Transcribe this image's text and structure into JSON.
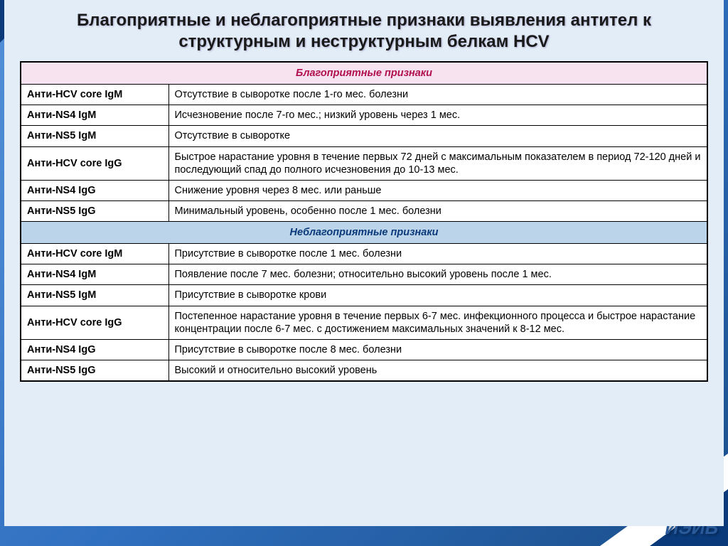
{
  "title": "Благоприятные и неблагоприятные признаки выявления антител к структурным и неструктурным белкам HCV",
  "brand": "ИЭИБ",
  "sections": {
    "favorable": {
      "header": "Благоприятные признаки",
      "rows": [
        {
          "marker": "Анти-HCV core IgM",
          "desc": "Отсутствие в сыворотке после 1-го мес. болезни"
        },
        {
          "marker": "Анти-NS4 IgM",
          "desc": "Исчезновение после 7-го мес.; низкий уровень через 1 мес."
        },
        {
          "marker": "Анти-NS5 IgM",
          "desc": "Отсутствие в сыворотке"
        },
        {
          "marker": "Анти-HCV core IgG",
          "desc": "Быстрое  нарастание уровня в течение первых 72 дней с максимальным показателем в период 72-120 дней и последующий спад до полного исчезновения до 10-13 мес."
        },
        {
          "marker": "Анти-NS4 IgG",
          "desc": "Снижение уровня через 8 мес. или раньше"
        },
        {
          "marker": "Анти-NS5 IgG",
          "desc": "Минимальный уровень, особенно после 1 мес. болезни"
        }
      ]
    },
    "unfavorable": {
      "header": "Неблагоприятные признаки",
      "rows": [
        {
          "marker": "Анти-HCV core IgM",
          "desc": "Присутствие в сыворотке после 1 мес. болезни"
        },
        {
          "marker": "Анти-NS4 IgM",
          "desc": "Появление после 7 мес. болезни; относительно высокий уровень после 1 мес."
        },
        {
          "marker": "Анти-NS5 IgM",
          "desc": "Присутствие в сыворотке крови"
        },
        {
          "marker": "Анти-HCV core IgG",
          "desc": "Постепенное нарастание уровня в течение первых 6-7 мес. инфекционного  процесса и быстрое нарастание концентрации после 6-7 мес. с достижением максимальных значений к 8-12 мес."
        },
        {
          "marker": "Анти-NS4 IgG",
          "desc": "Присутствие в сыворотке после 8 мес. болезни"
        },
        {
          "marker": "Анти-NS5 IgG",
          "desc": "Высокий и относительно высокий уровень"
        }
      ]
    }
  }
}
